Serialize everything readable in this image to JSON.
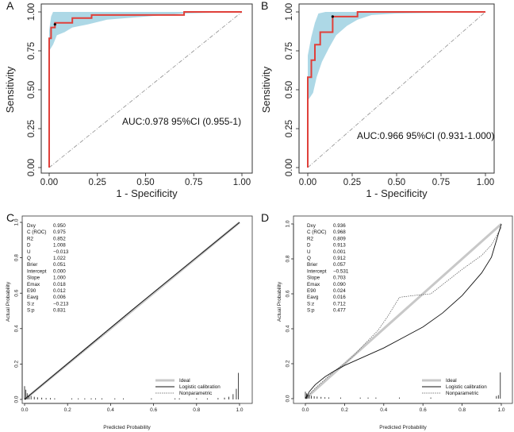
{
  "colors": {
    "roc_line": "#e0403a",
    "roc_band": "#add8e6",
    "diagonal": "#999999",
    "ideal": "#c8c8c8",
    "logistic": "#111111",
    "nonparam": "#555555",
    "axis": "#222222"
  },
  "chart_data": [
    {
      "panel": "A",
      "type": "line",
      "xlabel": "1 - Specificity",
      "ylabel": "Sensitivity",
      "xlim": [
        0,
        1
      ],
      "ylim": [
        0,
        1
      ],
      "xticks": [
        "0.00",
        "0.25",
        "0.50",
        "0.75",
        "1.00"
      ],
      "yticks": [
        "0.00",
        "0.25",
        "0.50",
        "0.75",
        "1.00"
      ],
      "annotation": "AUC:0.978 95%CI (0.955-1)",
      "roc": [
        [
          0,
          0
        ],
        [
          0,
          0.83
        ],
        [
          0.01,
          0.83
        ],
        [
          0.01,
          0.9
        ],
        [
          0.03,
          0.9
        ],
        [
          0.03,
          0.93
        ],
        [
          0.12,
          0.93
        ],
        [
          0.12,
          0.96
        ],
        [
          0.22,
          0.96
        ],
        [
          0.22,
          0.98
        ],
        [
          0.42,
          0.98
        ],
        [
          0.7,
          0.98
        ],
        [
          0.7,
          1
        ],
        [
          1,
          1
        ]
      ],
      "band_upper": [
        [
          0,
          0.88
        ],
        [
          0.01,
          0.97
        ],
        [
          0.02,
          1
        ],
        [
          1,
          1
        ]
      ],
      "band_lower": [
        [
          0,
          0.75
        ],
        [
          0.02,
          0.79
        ],
        [
          0.04,
          0.85
        ],
        [
          0.08,
          0.87
        ],
        [
          0.12,
          0.9
        ],
        [
          0.2,
          0.92
        ],
        [
          0.3,
          0.95
        ],
        [
          0.5,
          0.97
        ],
        [
          0.7,
          0.99
        ],
        [
          1,
          1
        ]
      ],
      "cutoff_point": [
        0.03,
        0.92
      ]
    },
    {
      "panel": "B",
      "type": "line",
      "xlabel": "1 - Specificity",
      "ylabel": "Sensitivity",
      "xlim": [
        0,
        1
      ],
      "ylim": [
        0,
        1
      ],
      "xticks": [
        "0.00",
        "0.25",
        "0.50",
        "0.75",
        "1.00"
      ],
      "yticks": [
        "0.00",
        "0.25",
        "0.50",
        "0.75",
        "1.00"
      ],
      "annotation": "AUC:0.966 95%CI (0.931-1.000)",
      "roc": [
        [
          0,
          0
        ],
        [
          0,
          0.58
        ],
        [
          0.02,
          0.58
        ],
        [
          0.02,
          0.69
        ],
        [
          0.04,
          0.69
        ],
        [
          0.04,
          0.79
        ],
        [
          0.07,
          0.79
        ],
        [
          0.07,
          0.87
        ],
        [
          0.14,
          0.87
        ],
        [
          0.14,
          0.97
        ],
        [
          0.28,
          0.97
        ],
        [
          0.28,
          1
        ],
        [
          1,
          1
        ]
      ],
      "band_upper": [
        [
          0,
          0.72
        ],
        [
          0.02,
          0.84
        ],
        [
          0.04,
          0.93
        ],
        [
          0.06,
          0.99
        ],
        [
          0.1,
          1
        ],
        [
          1,
          1
        ]
      ],
      "band_lower": [
        [
          0,
          0.43
        ],
        [
          0.03,
          0.48
        ],
        [
          0.05,
          0.58
        ],
        [
          0.08,
          0.68
        ],
        [
          0.12,
          0.77
        ],
        [
          0.16,
          0.85
        ],
        [
          0.22,
          0.91
        ],
        [
          0.28,
          0.95
        ],
        [
          0.36,
          0.98
        ],
        [
          0.5,
          0.99
        ],
        [
          1,
          1
        ]
      ],
      "cutoff_point": [
        0.14,
        0.97
      ]
    },
    {
      "panel": "C",
      "type": "line",
      "xlabel": "Predicted Probability",
      "ylabel": "Actual Probability",
      "xlim": [
        0,
        1
      ],
      "ylim": [
        0,
        1
      ],
      "xticks": [
        "0.0",
        "0.2",
        "0.4",
        "0.6",
        "0.8",
        "1.0"
      ],
      "yticks": [
        "0.0",
        "0.2",
        "0.4",
        "0.6",
        "0.8",
        "1.0"
      ],
      "stats": [
        {
          "label": "Dxy",
          "value": "0.950"
        },
        {
          "label": "C (ROC)",
          "value": "0.975"
        },
        {
          "label": "R2",
          "value": "0.852"
        },
        {
          "label": "D",
          "value": "1.008"
        },
        {
          "label": "U",
          "value": "−0.013"
        },
        {
          "label": "Q",
          "value": "1.022"
        },
        {
          "label": "Brier",
          "value": "0.051"
        },
        {
          "label": "Intercept",
          "value": "0.000"
        },
        {
          "label": "Slope",
          "value": "1.000"
        },
        {
          "label": "Emax",
          "value": "0.018"
        },
        {
          "label": "E90",
          "value": "0.012"
        },
        {
          "label": "Eavg",
          "value": "0.006"
        },
        {
          "label": "S:z",
          "value": "−0.213"
        },
        {
          "label": "S:p",
          "value": "0.831"
        }
      ],
      "legend": [
        "Ideal",
        "Logistic calibration",
        "Nonparametric"
      ],
      "logistic": [
        [
          0,
          0
        ],
        [
          0.5,
          0.505
        ],
        [
          1,
          1
        ]
      ],
      "nonparam": [
        [
          0,
          0
        ],
        [
          0.3,
          0.3
        ],
        [
          0.6,
          0.605
        ],
        [
          1,
          1
        ]
      ],
      "rug": [
        {
          "x": 0.0,
          "h": 0.075
        },
        {
          "x": 0.006,
          "h": 0.055
        },
        {
          "x": 0.012,
          "h": 0.035
        },
        {
          "x": 0.02,
          "h": 0.025
        },
        {
          "x": 0.03,
          "h": 0.02
        },
        {
          "x": 0.045,
          "h": 0.015
        },
        {
          "x": 0.06,
          "h": 0.012
        },
        {
          "x": 0.08,
          "h": 0.01
        },
        {
          "x": 0.1,
          "h": 0.008
        },
        {
          "x": 0.12,
          "h": 0.008
        },
        {
          "x": 0.14,
          "h": 0.006
        },
        {
          "x": 0.22,
          "h": 0.006
        },
        {
          "x": 0.25,
          "h": 0.006
        },
        {
          "x": 0.28,
          "h": 0.006
        },
        {
          "x": 0.31,
          "h": 0.006
        },
        {
          "x": 0.33,
          "h": 0.006
        },
        {
          "x": 0.36,
          "h": 0.006
        },
        {
          "x": 0.42,
          "h": 0.006
        },
        {
          "x": 0.46,
          "h": 0.006
        },
        {
          "x": 0.59,
          "h": 0.006
        },
        {
          "x": 0.7,
          "h": 0.006
        },
        {
          "x": 0.72,
          "h": 0.006
        },
        {
          "x": 0.8,
          "h": 0.006
        },
        {
          "x": 0.85,
          "h": 0.006
        },
        {
          "x": 0.9,
          "h": 0.008
        },
        {
          "x": 0.93,
          "h": 0.01
        },
        {
          "x": 0.95,
          "h": 0.015
        },
        {
          "x": 0.97,
          "h": 0.03
        },
        {
          "x": 0.985,
          "h": 0.06
        },
        {
          "x": 0.995,
          "h": 0.15
        }
      ]
    },
    {
      "panel": "D",
      "type": "line",
      "xlabel": "Predicted Probability",
      "ylabel": "Actual Probability",
      "xlim": [
        0,
        1
      ],
      "ylim": [
        0,
        1
      ],
      "xticks": [
        "0.0",
        "0.2",
        "0.4",
        "0.6",
        "0.8",
        "1.0"
      ],
      "yticks": [
        "0.0",
        "0.2",
        "0.4",
        "0.6",
        "0.8",
        "1.0"
      ],
      "stats": [
        {
          "label": "Dxy",
          "value": "0.936"
        },
        {
          "label": "C (ROC)",
          "value": "0.968"
        },
        {
          "label": "R2",
          "value": "0.809"
        },
        {
          "label": "D",
          "value": "0.913"
        },
        {
          "label": "U",
          "value": "0.001"
        },
        {
          "label": "Q",
          "value": "0.912"
        },
        {
          "label": "Brier",
          "value": "0.057"
        },
        {
          "label": "Intercept",
          "value": "−0.531"
        },
        {
          "label": "Slope",
          "value": "0.703"
        },
        {
          "label": "Emax",
          "value": "0.090"
        },
        {
          "label": "E90",
          "value": "0.024"
        },
        {
          "label": "Eavg",
          "value": "0.016"
        },
        {
          "label": "S:z",
          "value": "0.712"
        },
        {
          "label": "S:p",
          "value": "0.477"
        }
      ],
      "legend": [
        "Ideal",
        "Logistic calibration",
        "Nonparametric"
      ],
      "logistic": [
        [
          0,
          0
        ],
        [
          0.02,
          0.04
        ],
        [
          0.05,
          0.08
        ],
        [
          0.1,
          0.125
        ],
        [
          0.15,
          0.16
        ],
        [
          0.2,
          0.19
        ],
        [
          0.3,
          0.24
        ],
        [
          0.4,
          0.29
        ],
        [
          0.5,
          0.35
        ],
        [
          0.6,
          0.41
        ],
        [
          0.7,
          0.49
        ],
        [
          0.8,
          0.59
        ],
        [
          0.9,
          0.72
        ],
        [
          0.95,
          0.81
        ],
        [
          1,
          1
        ]
      ],
      "nonparam": [
        [
          0,
          0
        ],
        [
          0.05,
          0.06
        ],
        [
          0.1,
          0.11
        ],
        [
          0.15,
          0.16
        ],
        [
          0.2,
          0.2
        ],
        [
          0.25,
          0.25
        ],
        [
          0.3,
          0.31
        ],
        [
          0.37,
          0.39
        ],
        [
          0.42,
          0.47
        ],
        [
          0.48,
          0.58
        ],
        [
          0.55,
          0.59
        ],
        [
          0.64,
          0.6
        ],
        [
          0.72,
          0.67
        ],
        [
          0.8,
          0.74
        ],
        [
          0.9,
          0.82
        ],
        [
          0.95,
          0.88
        ],
        [
          1,
          0.98
        ]
      ],
      "rug": [
        {
          "x": 0.0,
          "h": 0.04
        },
        {
          "x": 0.006,
          "h": 0.03
        },
        {
          "x": 0.012,
          "h": 0.025
        },
        {
          "x": 0.02,
          "h": 0.02
        },
        {
          "x": 0.03,
          "h": 0.017
        },
        {
          "x": 0.045,
          "h": 0.014
        },
        {
          "x": 0.06,
          "h": 0.012
        },
        {
          "x": 0.08,
          "h": 0.01
        },
        {
          "x": 0.1,
          "h": 0.008
        },
        {
          "x": 0.12,
          "h": 0.007
        },
        {
          "x": 0.18,
          "h": 0.006
        },
        {
          "x": 0.28,
          "h": 0.006
        },
        {
          "x": 0.32,
          "h": 0.006
        },
        {
          "x": 0.36,
          "h": 0.006
        },
        {
          "x": 0.48,
          "h": 0.006
        },
        {
          "x": 0.64,
          "h": 0.006
        },
        {
          "x": 0.975,
          "h": 0.015
        },
        {
          "x": 0.985,
          "h": 0.02
        },
        {
          "x": 0.995,
          "h": 0.15
        }
      ]
    }
  ]
}
